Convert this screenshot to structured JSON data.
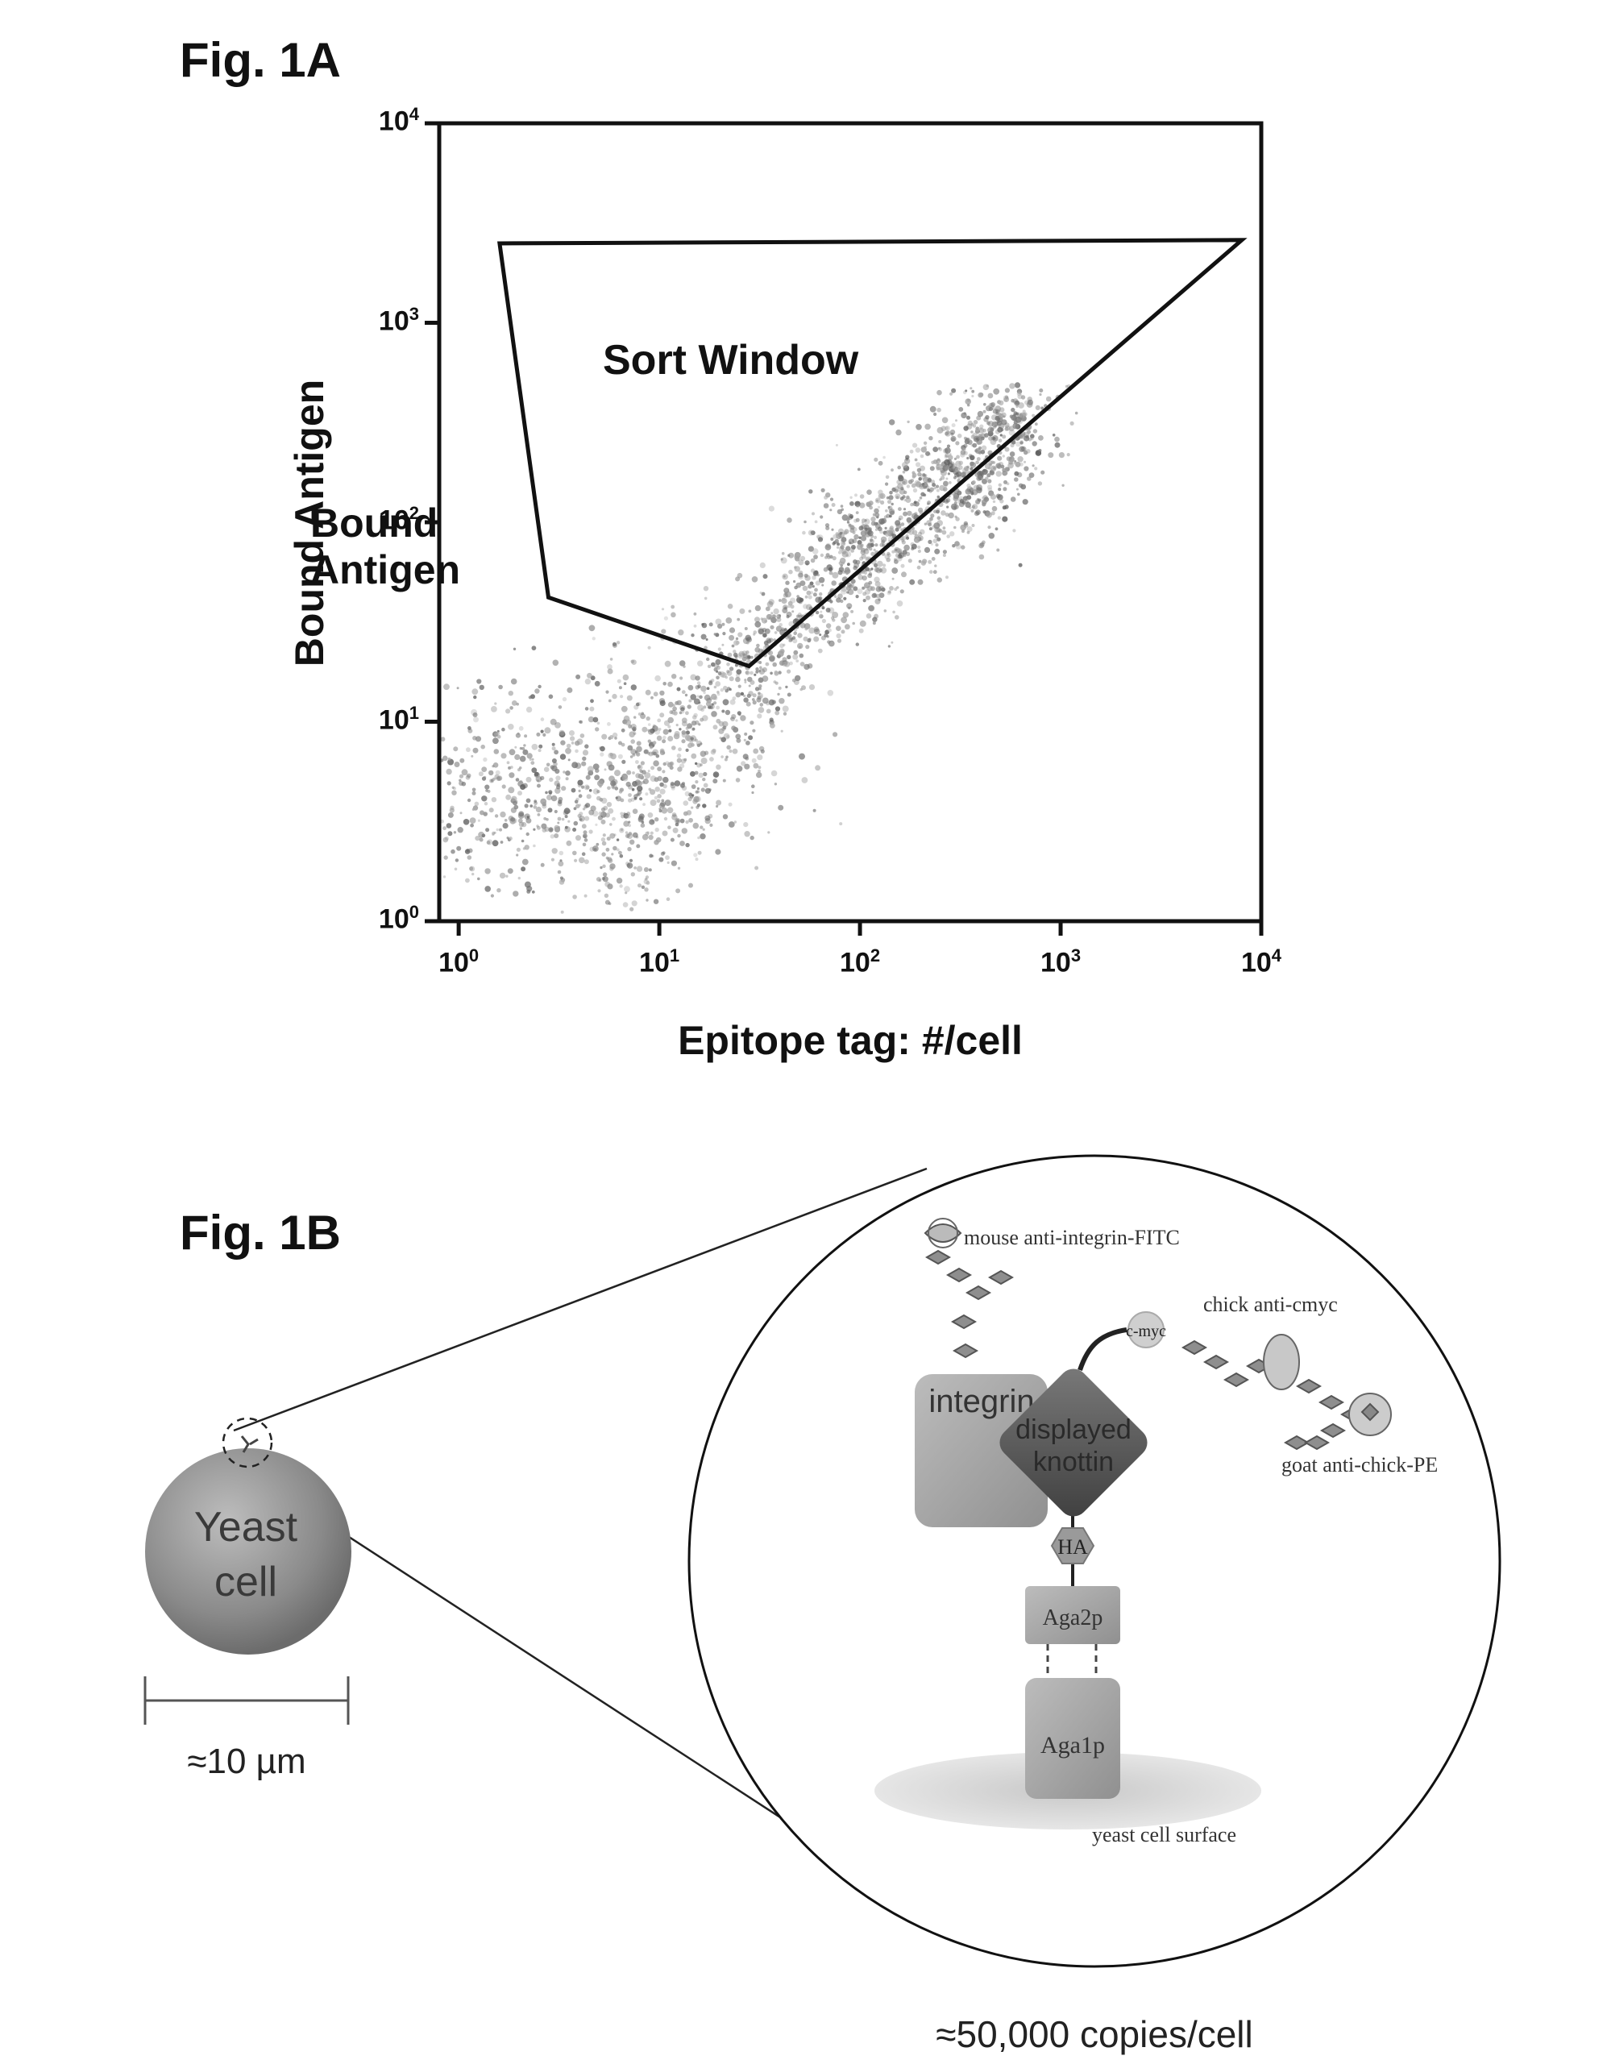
{
  "fig1a": {
    "title": "Fig. 1A",
    "sort_window_label": "Sort Window"
  },
  "fig1b": {
    "title": "Fig. 1B",
    "yeast_label_line1": "Yeast",
    "yeast_label_line2": "cell",
    "scale_label": "≈10 µm",
    "copies_label": "≈50,000 copies/cell",
    "labels": {
      "mouse_antibody": "mouse anti-integrin-FITC",
      "chick_antibody": "chick anti-cmyc",
      "goat_antibody": "goat anti-chick-PE",
      "cmyc": "c-myc",
      "integrin": "integrin",
      "knottin_line1": "displayed",
      "knottin_line2": "knottin",
      "ha": "HA",
      "aga2p": "Aga2p",
      "aga1p": "Aga1p",
      "surface": "yeast cell surface"
    }
  },
  "chart_data": {
    "type": "scatter",
    "title": "",
    "xlabel": "Epitope tag: #/cell",
    "ylabel": "Bound Antigen",
    "xscale": "log",
    "yscale": "log",
    "xlim": [
      0.8,
      10000
    ],
    "ylim": [
      1,
      10000
    ],
    "x_ticks": [
      {
        "value": 1,
        "base": "10",
        "exp": "0"
      },
      {
        "value": 10,
        "base": "10",
        "exp": "1"
      },
      {
        "value": 100,
        "base": "10",
        "exp": "2"
      },
      {
        "value": 1000,
        "base": "10",
        "exp": "3"
      },
      {
        "value": 10000,
        "base": "10",
        "exp": "4"
      }
    ],
    "y_ticks": [
      {
        "value": 1,
        "base": "10",
        "exp": "0"
      },
      {
        "value": 10,
        "base": "10",
        "exp": "1"
      },
      {
        "value": 100,
        "base": "10",
        "exp": "2"
      },
      {
        "value": 1000,
        "base": "10",
        "exp": "3"
      },
      {
        "value": 10000,
        "base": "10",
        "exp": "4"
      }
    ],
    "grid": false,
    "gate": {
      "label": "Sort Window",
      "vertices": [
        [
          1.6,
          2500
        ],
        [
          8000,
          2600
        ],
        [
          28,
          19
        ],
        [
          2.8,
          42
        ]
      ]
    },
    "population": {
      "description_points": [
        [
          0.9,
          3
        ],
        [
          1.5,
          5
        ],
        [
          3,
          4
        ],
        [
          5,
          3
        ],
        [
          8,
          4
        ],
        [
          10,
          6
        ],
        [
          15,
          8
        ],
        [
          20,
          12
        ],
        [
          30,
          20
        ],
        [
          50,
          35
        ],
        [
          80,
          50
        ],
        [
          100,
          70
        ],
        [
          150,
          90
        ],
        [
          200,
          120
        ],
        [
          300,
          160
        ],
        [
          400,
          220
        ],
        [
          500,
          270
        ],
        [
          700,
          300
        ]
      ]
    }
  }
}
